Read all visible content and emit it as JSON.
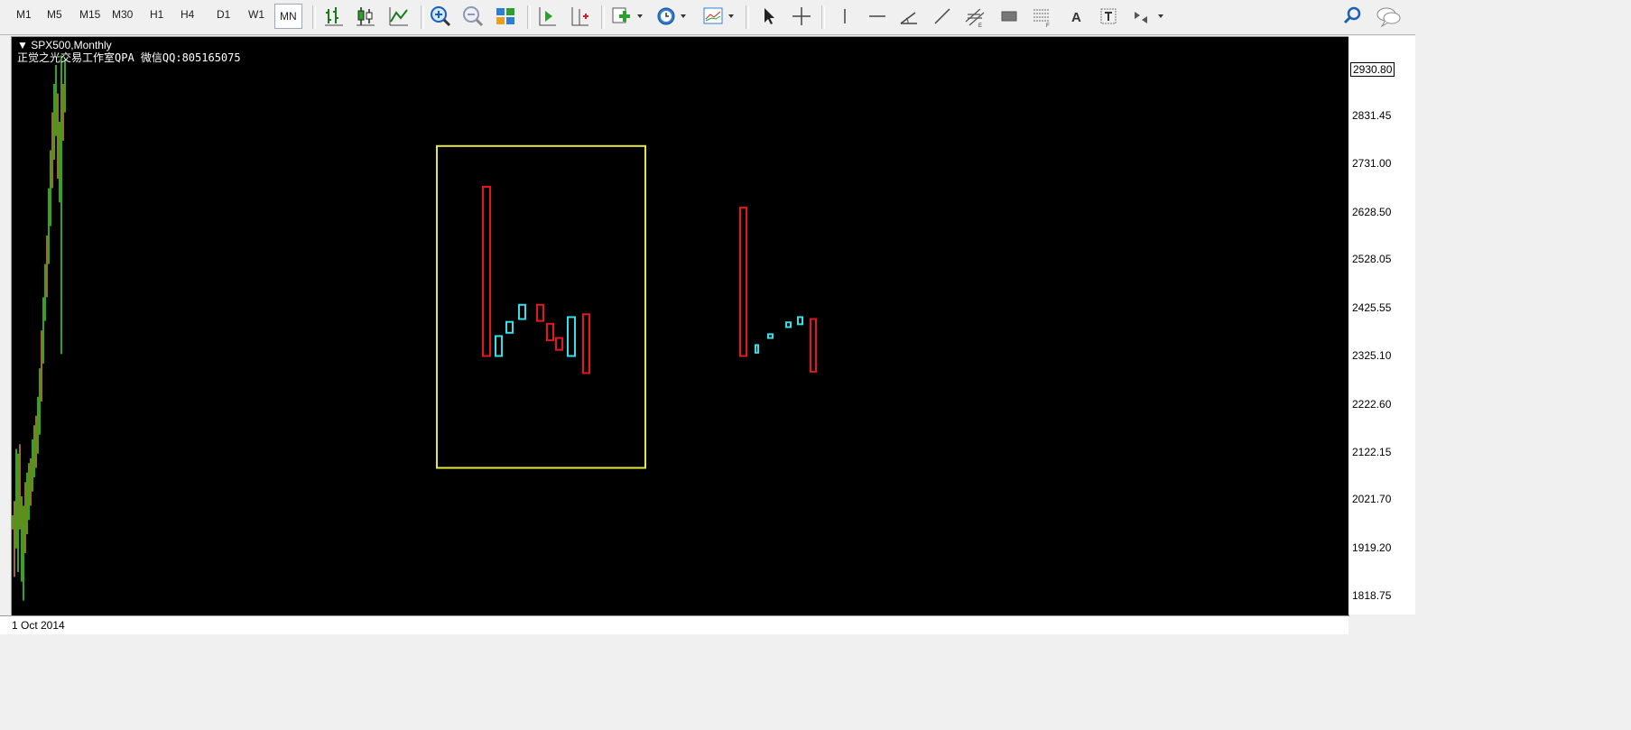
{
  "toolbar": {
    "timeframes": [
      "M1",
      "M5",
      "M15",
      "M30",
      "H1",
      "H4",
      "D1",
      "W1",
      "MN"
    ],
    "active_timeframe": "MN",
    "text_tool_label": "A"
  },
  "chart": {
    "symbol_line": "SPX500,Monthly",
    "comment": "正觉之光交易工作室QPA 微信QQ:805165075",
    "current_price": "2930.80",
    "time_label": "1 Oct 2014"
  },
  "chart_data": {
    "type": "candlestick",
    "price_axis_ticks": [
      "2831.45",
      "2731.00",
      "2628.50",
      "2528.05",
      "2425.55",
      "2325.10",
      "2222.60",
      "2122.15",
      "2021.70",
      "1919.20",
      "1818.75"
    ],
    "current_price": 2930.8,
    "colors": {
      "background": "#000000",
      "bull": "#33e0e8",
      "bear": "#e8141e",
      "history_up": "#4ad82a",
      "history_down": "#d89020",
      "box": "#e6e640"
    },
    "pattern_group_1": [
      {
        "open": 2326,
        "close": 2683,
        "dir": "bear"
      },
      {
        "open": 2326,
        "close": 2368,
        "dir": "bull"
      },
      {
        "open": 2375,
        "close": 2398,
        "dir": "bull"
      },
      {
        "open": 2404,
        "close": 2434,
        "dir": "bull"
      },
      {
        "open": 2434,
        "close": 2400,
        "dir": "bear"
      },
      {
        "open": 2394,
        "close": 2359,
        "dir": "bear"
      },
      {
        "open": 2364,
        "close": 2339,
        "dir": "bear"
      },
      {
        "open": 2326,
        "close": 2408,
        "dir": "bull"
      },
      {
        "open": 2414,
        "close": 2290,
        "dir": "bear"
      }
    ],
    "pattern_group_2": [
      {
        "open": 2326,
        "close": 2639,
        "dir": "bear"
      },
      {
        "open": 2333,
        "close": 2349,
        "dir": "bull"
      },
      {
        "open": 2364,
        "close": 2372,
        "dir": "bull"
      },
      {
        "open": 2387,
        "close": 2397,
        "dir": "bull"
      },
      {
        "open": 2393,
        "close": 2408,
        "dir": "bull"
      },
      {
        "open": 2404,
        "close": 2293,
        "dir": "bear"
      }
    ],
    "highlight_box": {
      "price_top": 2769,
      "price_bottom": 2090
    }
  }
}
